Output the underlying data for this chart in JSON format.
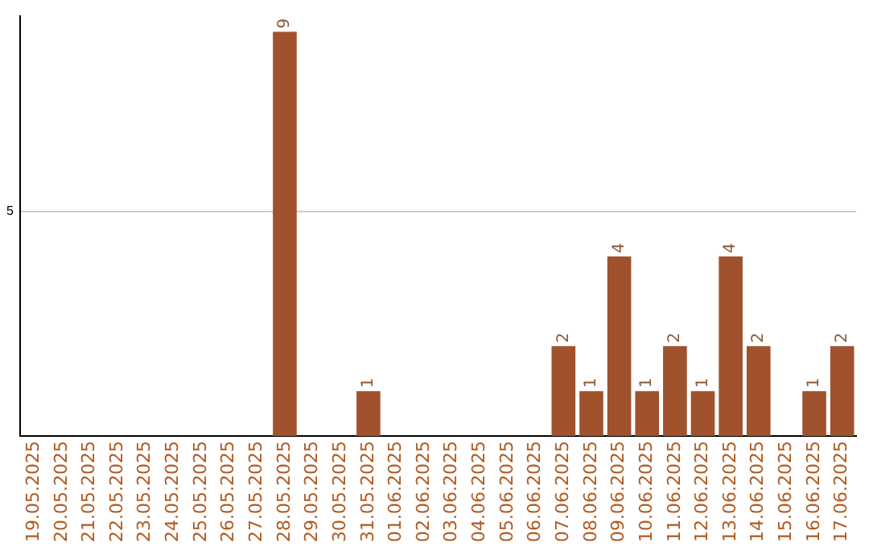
{
  "chart_data": {
    "type": "bar",
    "categories": [
      "19.05.2025",
      "20.05.2025",
      "21.05.2025",
      "22.05.2025",
      "23.05.2025",
      "24.05.2025",
      "25.05.2025",
      "26.05.2025",
      "27.05.2025",
      "28.05.2025",
      "29.05.2025",
      "30.05.2025",
      "31.05.2025",
      "01.06.2025",
      "02.06.2025",
      "03.06.2025",
      "04.06.2025",
      "05.06.2025",
      "06.06.2025",
      "07.06.2025",
      "08.06.2025",
      "09.06.2025",
      "10.06.2025",
      "11.06.2025",
      "12.06.2025",
      "13.06.2025",
      "14.06.2025",
      "15.06.2025",
      "16.06.2025",
      "17.06.2025"
    ],
    "values": [
      0,
      0,
      0,
      0,
      0,
      0,
      0,
      0,
      0,
      9,
      0,
      0,
      1,
      0,
      0,
      0,
      0,
      0,
      0,
      2,
      1,
      4,
      1,
      2,
      1,
      4,
      2,
      0,
      1,
      2
    ],
    "value_labels": [
      null,
      null,
      null,
      null,
      null,
      null,
      null,
      null,
      null,
      "9",
      null,
      null,
      "1",
      null,
      null,
      null,
      null,
      null,
      null,
      "2",
      "1",
      "4",
      "1",
      "2",
      "1",
      "4",
      "2",
      null,
      "1",
      "2"
    ],
    "color": "#a0522d",
    "ylim": [
      0,
      9.35
    ],
    "yticks": [
      5
    ],
    "grid": "y",
    "legend": false
  }
}
